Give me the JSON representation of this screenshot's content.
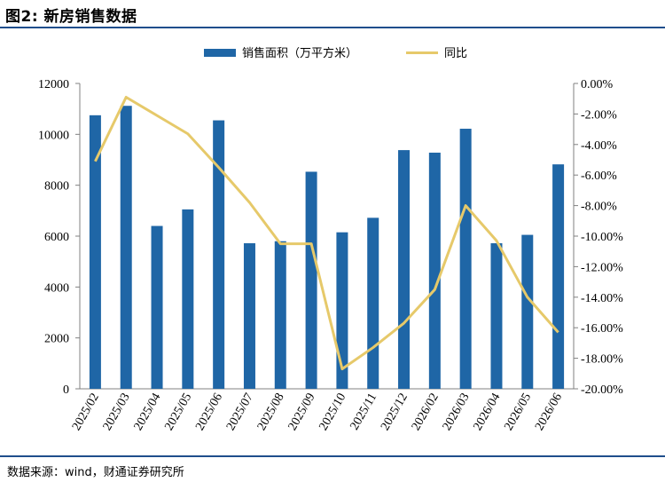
{
  "figure": {
    "title": "图2: 新房销售数据",
    "source": "数据来源：wind，财通证券研究所"
  },
  "colors": {
    "bar": "#1f66a6",
    "line": "#e6c96a",
    "rule": "#1f4e8c"
  },
  "chart_data": {
    "type": "bar",
    "categories": [
      "2025/02",
      "2025/03",
      "2025/04",
      "2025/05",
      "2025/06",
      "2025/07",
      "2025/08",
      "2025/09",
      "2025/10",
      "2025/11",
      "2025/12",
      "2026/02",
      "2026/03",
      "2026/04",
      "2026/05",
      "2026/06"
    ],
    "series": [
      {
        "name": "销售面积（万平方米）",
        "type": "bar",
        "axis": "left",
        "values": [
          10750,
          11120,
          6400,
          7050,
          10550,
          5720,
          5800,
          8530,
          6150,
          6720,
          9380,
          9280,
          10220,
          5720,
          6050,
          8820
        ]
      },
      {
        "name": "同比",
        "type": "line",
        "axis": "right",
        "values": [
          -5.1,
          -0.9,
          -2.1,
          -3.3,
          -5.5,
          -7.8,
          -10.5,
          -10.5,
          -18.7,
          -17.3,
          -15.7,
          -13.5,
          -8.0,
          -10.3,
          -14.0,
          -16.3
        ]
      }
    ],
    "left_axis": {
      "ylim": [
        0,
        12000
      ],
      "ticks": [
        "0",
        "2000",
        "4000",
        "6000",
        "8000",
        "10000",
        "12000"
      ]
    },
    "right_axis": {
      "ylim": [
        -20,
        0
      ],
      "ticks": [
        "-20.00%",
        "-18.00%",
        "-16.00%",
        "-14.00%",
        "-12.00%",
        "-10.00%",
        "-8.00%",
        "-6.00%",
        "-4.00%",
        "-2.00%",
        "0.00%"
      ]
    },
    "legend_position": "top-center",
    "grid": false
  }
}
